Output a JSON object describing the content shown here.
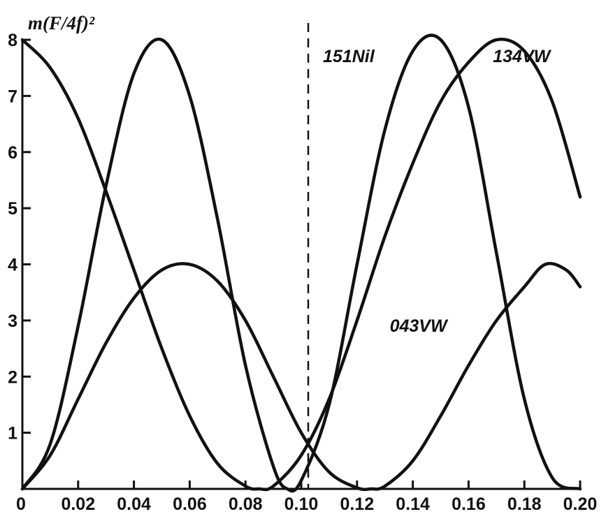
{
  "chart_data": {
    "type": "line",
    "ylabel": "m(F/4f)²",
    "xlabel": "",
    "xlim": [
      0,
      0.2
    ],
    "ylim": [
      0,
      8
    ],
    "x_ticks": [
      0,
      0.02,
      0.04,
      0.06,
      0.08,
      0.1,
      0.12,
      0.14,
      0.16,
      0.18,
      0.2
    ],
    "x_tick_labels": [
      "0",
      "0.02",
      "0.04",
      "0.06",
      "0.08",
      "0.10",
      "0.12",
      "0.14",
      "0.16",
      "0.18",
      "0.20"
    ],
    "y_ticks": [
      1,
      2,
      3,
      4,
      5,
      6,
      7,
      8
    ],
    "y_tick_labels": [
      "1",
      "2",
      "3",
      "4",
      "5",
      "6",
      "7",
      "8"
    ],
    "grid": false,
    "vertical_marker": {
      "x": 0.1025,
      "style": "dashed"
    },
    "series": [
      {
        "label": "",
        "x": [
          0,
          0.01,
          0.02,
          0.03,
          0.04,
          0.05,
          0.06,
          0.07,
          0.08,
          0.085,
          0.09,
          0.1,
          0.11,
          0.12,
          0.13,
          0.14,
          0.15,
          0.16,
          0.17,
          0.18,
          0.19,
          0.2
        ],
        "y": [
          8.0,
          7.5,
          6.6,
          5.3,
          3.9,
          2.5,
          1.3,
          0.45,
          0.05,
          0.0,
          0.05,
          0.6,
          1.6,
          3.0,
          4.5,
          5.8,
          6.9,
          7.6,
          8.0,
          7.8,
          6.9,
          5.2
        ]
      },
      {
        "label": "",
        "x": [
          0,
          0.01,
          0.02,
          0.03,
          0.04,
          0.05,
          0.06,
          0.07,
          0.08,
          0.09,
          0.1,
          0.11,
          0.12,
          0.125,
          0.13,
          0.14,
          0.15,
          0.16,
          0.17,
          0.18,
          0.1875,
          0.195,
          0.2
        ],
        "y": [
          0.0,
          0.6,
          1.6,
          2.6,
          3.4,
          3.9,
          4.0,
          3.7,
          3.0,
          2.0,
          1.0,
          0.3,
          0.02,
          0.0,
          0.05,
          0.5,
          1.3,
          2.2,
          3.0,
          3.6,
          4.0,
          3.9,
          3.6
        ]
      },
      {
        "label": "",
        "x": [
          0,
          0.01,
          0.02,
          0.03,
          0.04,
          0.05,
          0.06,
          0.07,
          0.08,
          0.09,
          0.095,
          0.1,
          0.11,
          0.12,
          0.13,
          0.14,
          0.15,
          0.16,
          0.17,
          0.18,
          0.19,
          0.2
        ],
        "y": [
          0.0,
          0.8,
          2.9,
          5.4,
          7.4,
          8.0,
          7.0,
          4.8,
          2.2,
          0.4,
          0.0,
          0.15,
          1.5,
          4.0,
          6.4,
          7.8,
          8.0,
          6.8,
          4.2,
          1.6,
          0.2,
          0.0
        ]
      }
    ],
    "annotations": [
      {
        "text": "151Nil",
        "x": 0.117,
        "y": 7.6
      },
      {
        "text": "134VW",
        "x": 0.179,
        "y": 7.6
      },
      {
        "text": "043VW",
        "x": 0.142,
        "y": 2.8
      }
    ]
  }
}
